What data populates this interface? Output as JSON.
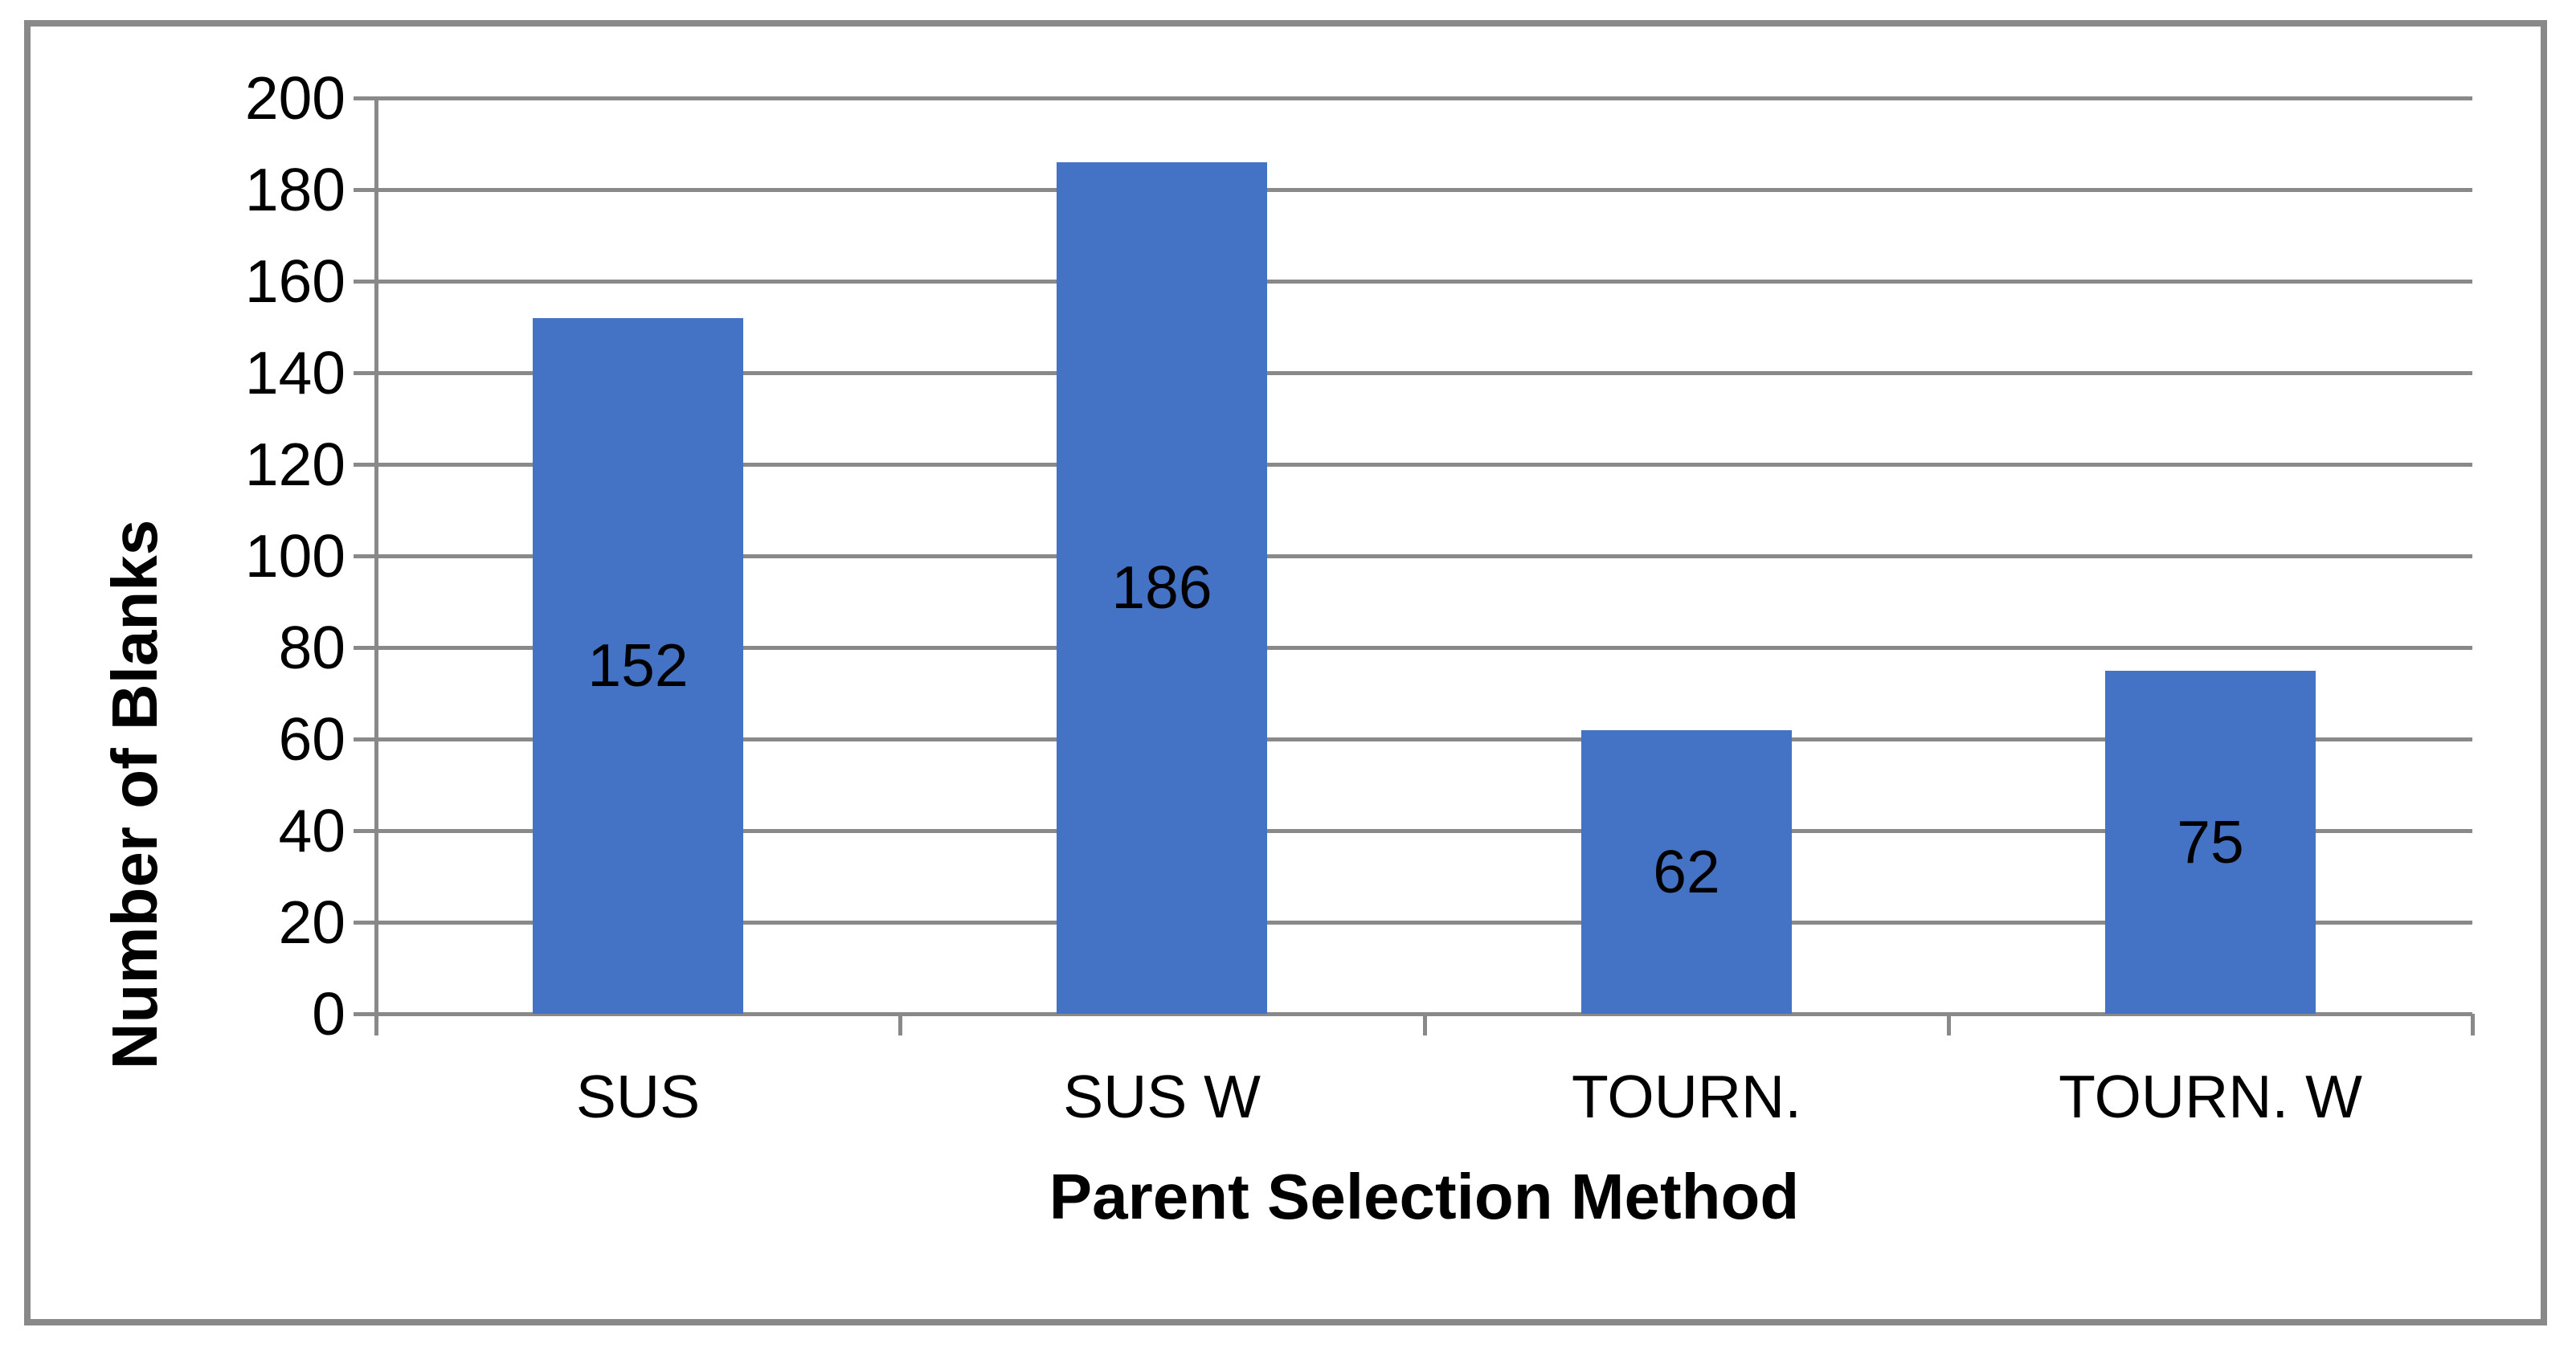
{
  "chart_data": {
    "type": "bar",
    "title": "",
    "categories": [
      "SUS",
      "SUS W",
      "TOURN.",
      "TOURN. W"
    ],
    "values": [
      152,
      186,
      62,
      75
    ],
    "data_labels": [
      "152",
      "186",
      "62",
      "75"
    ],
    "xlabel": "Parent Selection Method",
    "ylabel": "Number of Blanks",
    "ylim": [
      0,
      200
    ],
    "yticks": [
      0,
      20,
      40,
      60,
      80,
      100,
      120,
      140,
      160,
      180,
      200
    ],
    "grid": true,
    "legend_position": "none",
    "colors": {
      "bar_fill": "#4472C4",
      "gridline": "#898989",
      "axis_line": "#898989",
      "frame_border": "#898989",
      "text": "#000000",
      "background": "#ffffff"
    }
  }
}
